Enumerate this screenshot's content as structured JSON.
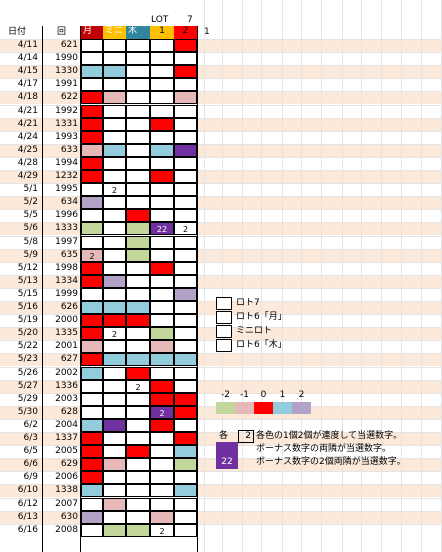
{
  "header": {
    "lot_label": "LOT",
    "lot_value": "7",
    "date_label": "日付",
    "kai_label": "回",
    "col_moon": "月",
    "col_mini": "ミニ",
    "col_wood": "木",
    "lot_sub1": "1",
    "lot_sub2": "2",
    "extra_one": "1"
  },
  "colors": {
    "-2": "#c3d69b",
    "-1": "#e6b9b8",
    "0": "#ff0000",
    "1": "#93cddd",
    "2": "#b3a2c7",
    "P": "#7030a0",
    "W": "#ffffff",
    "band": "#fde9d9",
    "header_moon": "#c00000",
    "header_mini": "#ffc000",
    "header_wood": "#31859c",
    "header_lot1": "#ffc000",
    "header_lot2": "#ff0000"
  },
  "rows": [
    {
      "date": "4/11",
      "kai": "621",
      "cells": [
        "W",
        "W",
        "W",
        "W",
        "0"
      ],
      "nums": [
        "",
        "",
        "",
        "",
        ""
      ]
    },
    {
      "date": "4/14",
      "kai": "1990",
      "cells": [
        "W",
        "W",
        "W",
        "W",
        "W"
      ],
      "nums": [
        "",
        "",
        "",
        "",
        ""
      ]
    },
    {
      "date": "4/15",
      "kai": "1330",
      "cells": [
        "1",
        "1",
        "W",
        "W",
        "0"
      ],
      "nums": [
        "",
        "",
        "",
        "",
        ""
      ]
    },
    {
      "date": "4/17",
      "kai": "1991",
      "cells": [
        "W",
        "W",
        "W",
        "W",
        "W"
      ],
      "nums": [
        "",
        "",
        "",
        "",
        ""
      ]
    },
    {
      "date": "4/18",
      "kai": "622",
      "cells": [
        "0",
        "-1",
        "W",
        "W",
        "-1"
      ],
      "nums": [
        "",
        "",
        "",
        "",
        ""
      ]
    },
    {
      "date": "4/21",
      "kai": "1992",
      "cells": [
        "0",
        "W",
        "W",
        "W",
        "W"
      ],
      "nums": [
        "",
        "",
        "",
        "",
        ""
      ]
    },
    {
      "date": "4/21",
      "kai": "1331",
      "cells": [
        "0",
        "W",
        "W",
        "0",
        "W"
      ],
      "nums": [
        "",
        "",
        "",
        "",
        ""
      ]
    },
    {
      "date": "4/24",
      "kai": "1993",
      "cells": [
        "0",
        "W",
        "W",
        "W",
        "W"
      ],
      "nums": [
        "",
        "",
        "",
        "",
        ""
      ]
    },
    {
      "date": "4/25",
      "kai": "633",
      "cells": [
        "-1",
        "1",
        "W",
        "1",
        "P"
      ],
      "nums": [
        "",
        "",
        "",
        "",
        ""
      ]
    },
    {
      "date": "4/28",
      "kai": "1994",
      "cells": [
        "0",
        "W",
        "W",
        "W",
        "W"
      ],
      "nums": [
        "",
        "",
        "",
        "",
        ""
      ]
    },
    {
      "date": "4/29",
      "kai": "1232",
      "cells": [
        "0",
        "W",
        "W",
        "0",
        "W"
      ],
      "nums": [
        "",
        "",
        "",
        "",
        ""
      ]
    },
    {
      "date": "5/1",
      "kai": "1995",
      "cells": [
        "W",
        "W",
        "W",
        "W",
        "W"
      ],
      "nums": [
        "",
        "2",
        "",
        "",
        ""
      ]
    },
    {
      "date": "5/2",
      "kai": "634",
      "cells": [
        "2",
        "W",
        "W",
        "W",
        "W"
      ],
      "nums": [
        "",
        "",
        "",
        "",
        ""
      ]
    },
    {
      "date": "5/5",
      "kai": "1996",
      "cells": [
        "W",
        "W",
        "0",
        "W",
        "W"
      ],
      "nums": [
        "",
        "",
        "",
        "",
        ""
      ]
    },
    {
      "date": "5/6",
      "kai": "1333",
      "cells": [
        "-2",
        "W",
        "-2",
        "P",
        "W"
      ],
      "nums": [
        "",
        "",
        "",
        "22",
        "2"
      ]
    },
    {
      "date": "5/8",
      "kai": "1997",
      "cells": [
        "W",
        "W",
        "-2",
        "W",
        "W"
      ],
      "nums": [
        "",
        "",
        "",
        "",
        ""
      ]
    },
    {
      "date": "5/9",
      "kai": "635",
      "cells": [
        "-1",
        "W",
        "-2",
        "W",
        "W"
      ],
      "nums": [
        "2",
        "",
        "",
        "",
        ""
      ]
    },
    {
      "date": "5/12",
      "kai": "1998",
      "cells": [
        "0",
        "W",
        "W",
        "0",
        "W"
      ],
      "nums": [
        "",
        "",
        "",
        "",
        ""
      ]
    },
    {
      "date": "5/13",
      "kai": "1334",
      "cells": [
        "0",
        "2",
        "W",
        "W",
        "W"
      ],
      "nums": [
        "",
        "",
        "",
        "",
        ""
      ]
    },
    {
      "date": "5/15",
      "kai": "1999",
      "cells": [
        "W",
        "W",
        "W",
        "W",
        "2"
      ],
      "nums": [
        "",
        "",
        "",
        "",
        ""
      ]
    },
    {
      "date": "5/16",
      "kai": "626",
      "cells": [
        "1",
        "1",
        "1",
        "W",
        "W"
      ],
      "nums": [
        "",
        "",
        "",
        "",
        ""
      ]
    },
    {
      "date": "5/19",
      "kai": "2000",
      "cells": [
        "0",
        "0",
        "0",
        "W",
        "W"
      ],
      "nums": [
        "",
        "",
        "",
        "",
        ""
      ]
    },
    {
      "date": "5/20",
      "kai": "1335",
      "cells": [
        "0",
        "W",
        "W",
        "-2",
        "W"
      ],
      "nums": [
        "",
        "2",
        "",
        "",
        ""
      ]
    },
    {
      "date": "5/22",
      "kai": "2001",
      "cells": [
        "-1",
        "W",
        "W",
        "-1",
        "W"
      ],
      "nums": [
        "",
        "",
        "",
        "",
        ""
      ]
    },
    {
      "date": "5/23",
      "kai": "627",
      "cells": [
        "0",
        "1",
        "1",
        "1",
        "1"
      ],
      "nums": [
        "",
        "",
        "",
        "",
        ""
      ]
    },
    {
      "date": "5/26",
      "kai": "2002",
      "cells": [
        "1",
        "W",
        "0",
        "W",
        "W"
      ],
      "nums": [
        "",
        "",
        "",
        "",
        ""
      ]
    },
    {
      "date": "5/27",
      "kai": "1336",
      "cells": [
        "W",
        "W",
        "W",
        "0",
        "W"
      ],
      "nums": [
        "",
        "",
        "2",
        "",
        ""
      ]
    },
    {
      "date": "5/29",
      "kai": "2003",
      "cells": [
        "W",
        "W",
        "W",
        "0",
        "0"
      ],
      "nums": [
        "",
        "",
        "",
        "",
        ""
      ]
    },
    {
      "date": "5/30",
      "kai": "628",
      "cells": [
        "W",
        "W",
        "W",
        "P",
        "0"
      ],
      "nums": [
        "",
        "",
        "",
        "2",
        ""
      ]
    },
    {
      "date": "6/2",
      "kai": "2004",
      "cells": [
        "1",
        "P",
        "W",
        "0",
        "W"
      ],
      "nums": [
        "",
        "",
        "",
        "",
        ""
      ]
    },
    {
      "date": "6/3",
      "kai": "1337",
      "cells": [
        "0",
        "W",
        "W",
        "W",
        "0"
      ],
      "nums": [
        "",
        "",
        "",
        "",
        ""
      ]
    },
    {
      "date": "6/5",
      "kai": "2005",
      "cells": [
        "0",
        "W",
        "0",
        "W",
        "1"
      ],
      "nums": [
        "",
        "",
        "",
        "",
        ""
      ]
    },
    {
      "date": "6/6",
      "kai": "629",
      "cells": [
        "0",
        "-1",
        "W",
        "W",
        "-2"
      ],
      "nums": [
        "",
        "",
        "",
        "",
        ""
      ]
    },
    {
      "date": "6/9",
      "kai": "2006",
      "cells": [
        "0",
        "W",
        "W",
        "W",
        "W"
      ],
      "nums": [
        "",
        "",
        "",
        "",
        ""
      ]
    },
    {
      "date": "6/10",
      "kai": "1338",
      "cells": [
        "1",
        "W",
        "W",
        "W",
        "1"
      ],
      "nums": [
        "",
        "",
        "",
        "",
        ""
      ]
    },
    {
      "date": "6/12",
      "kai": "2007",
      "cells": [
        "W",
        "-1",
        "W",
        "W",
        "W"
      ],
      "nums": [
        "",
        "",
        "",
        "",
        ""
      ]
    },
    {
      "date": "6/13",
      "kai": "630",
      "cells": [
        "2",
        "W",
        "W",
        "-1",
        "W"
      ],
      "nums": [
        "",
        "",
        "",
        "",
        ""
      ]
    },
    {
      "date": "6/16",
      "kai": "2008",
      "cells": [
        "W",
        "-2",
        "-2",
        "W",
        "W"
      ],
      "nums": [
        "",
        "",
        "",
        "2",
        ""
      ]
    }
  ],
  "legend": [
    {
      "label": "ロト7"
    },
    {
      "label": "ロト6「月」"
    },
    {
      "label": "ミニロト"
    },
    {
      "label": "ロト6「木」"
    }
  ],
  "scale": {
    "labels": [
      "-2",
      "-1",
      "0",
      "1",
      "2"
    ],
    "keys": [
      "-2",
      "-1",
      "0",
      "1",
      "2"
    ]
  },
  "notes": {
    "kaku": "各",
    "box_num": "2",
    "line1": "各色の1個2個が連度して当選数字。",
    "line2": "ボーナス数字の両隣が当選数字。",
    "num22": "22",
    "line3": "ボーナス数字の2個両隣が当選数字。"
  }
}
